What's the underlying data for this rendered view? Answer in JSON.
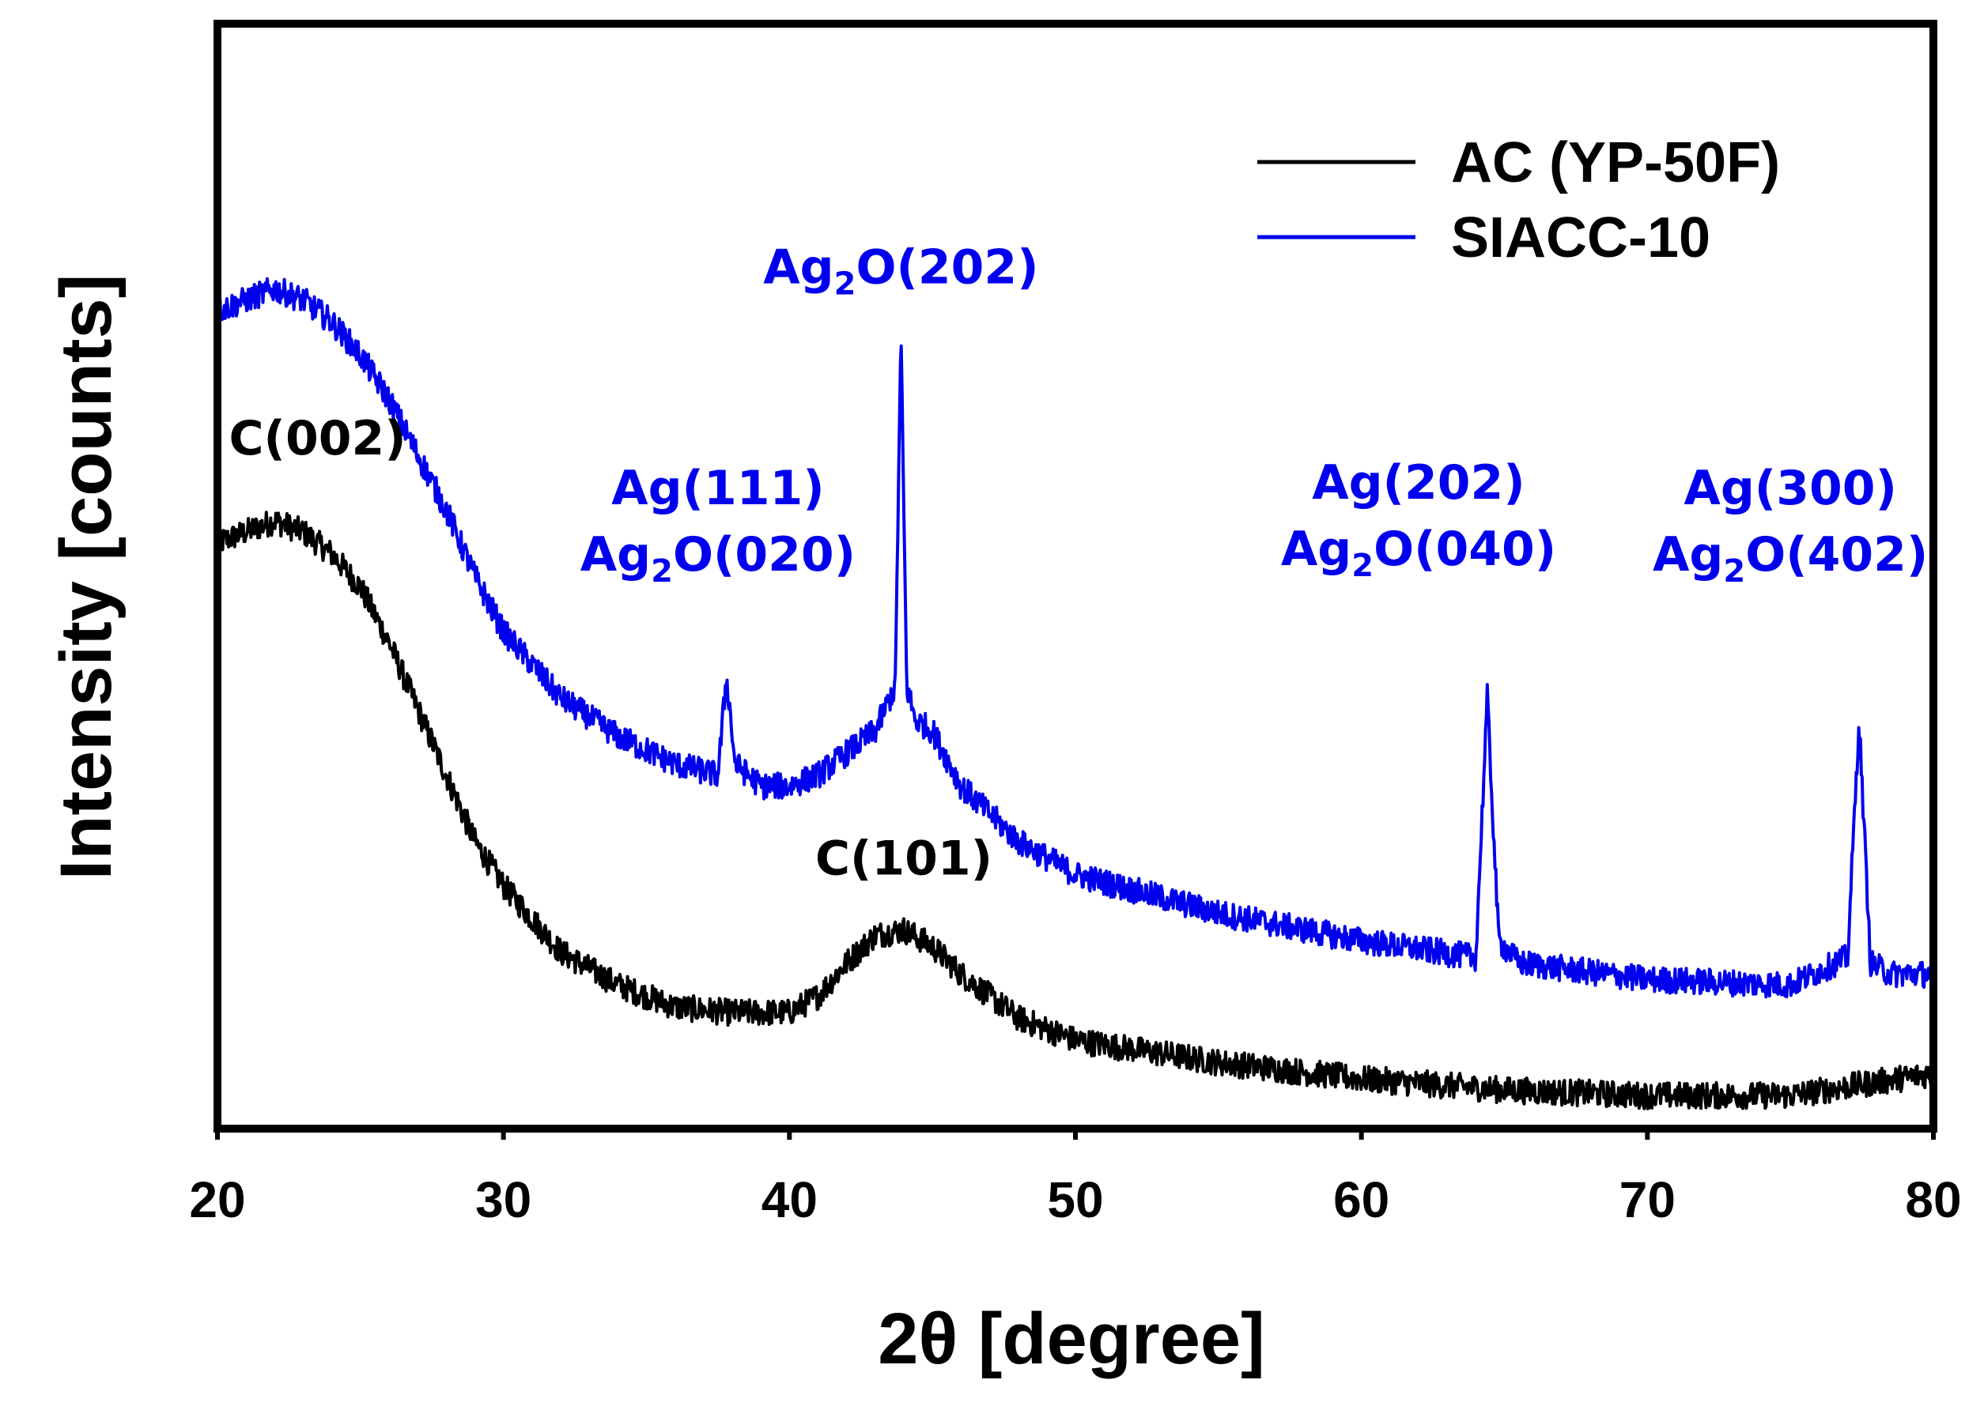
{
  "chart_data": {
    "type": "line",
    "title": "",
    "xlabel": "2θ [degree]",
    "ylabel": "Intensity [counts]",
    "xlim": [
      20,
      80
    ],
    "ylim": [
      0,
      100
    ],
    "xticks": [
      20,
      30,
      40,
      50,
      60,
      70,
      80
    ],
    "yticks_shown": false,
    "grid": false,
    "legend_position": "top-right",
    "colors": {
      "ac": "#000000",
      "siacc": "#0000ee",
      "frame": "#000000"
    },
    "series": [
      {
        "name": "AC (YP-50F)",
        "color": "#000000",
        "x": [
          20,
          21,
          22,
          23,
          24,
          25,
          26,
          27,
          28,
          29,
          30,
          32,
          34,
          36,
          38,
          40,
          41,
          42,
          43,
          44,
          45,
          46,
          48,
          50,
          55,
          60,
          65,
          70,
          75,
          80
        ],
        "y": [
          53,
          54,
          55,
          54,
          52,
          49,
          44,
          38,
          32,
          26,
          22,
          16,
          13,
          11,
          10.5,
          10.5,
          12,
          15,
          17.5,
          18,
          16.5,
          14,
          10,
          8,
          6,
          4.5,
          3.5,
          3,
          3,
          5
        ]
      },
      {
        "name": "SIACC-10",
        "color": "#0000ee",
        "x": [
          20,
          21,
          22,
          23,
          24,
          25,
          26,
          27,
          28,
          29,
          30,
          32,
          34,
          36,
          37.5,
          37.8,
          38.1,
          39,
          40,
          41,
          42,
          43,
          43.7,
          43.9,
          44.1,
          44.4,
          45,
          46,
          48,
          50,
          55,
          60,
          64,
          64.4,
          64.8,
          65.5,
          70,
          75,
          77,
          77.4,
          77.8,
          78.5,
          80
        ],
        "y": [
          74,
          75,
          76,
          75,
          73,
          70,
          66,
          61,
          56,
          50,
          45,
          39,
          35.5,
          33,
          32,
          41,
          33,
          31,
          31,
          32,
          34,
          36,
          40,
          72,
          40,
          37,
          36,
          31,
          26,
          23,
          19.5,
          17,
          15.5,
          39,
          17,
          15,
          13.5,
          13,
          15.5,
          37,
          15,
          14,
          14
        ]
      }
    ],
    "annotations": [
      {
        "base": "C(002)",
        "sub": "",
        "rest": "",
        "x": 23.5,
        "y": 61,
        "color": "#000000"
      },
      {
        "base": "C(101)",
        "sub": "",
        "rest": "",
        "x": 44,
        "y": 23,
        "color": "#000000"
      },
      {
        "base": "Ag(111)",
        "sub": "",
        "rest": "",
        "x": 37.5,
        "y": 56.5,
        "color": "#0000ee"
      },
      {
        "base": "Ag",
        "sub": "2",
        "rest": "O(020)",
        "x": 37.5,
        "y": 50.5,
        "color": "#0000ee"
      },
      {
        "base": "Ag",
        "sub": "2",
        "rest": "O(202)",
        "x": 43.9,
        "y": 76.5,
        "color": "#0000ee"
      },
      {
        "base": "Ag(202)",
        "sub": "",
        "rest": "",
        "x": 62,
        "y": 57,
        "color": "#0000ee"
      },
      {
        "base": "Ag",
        "sub": "2",
        "rest": "O(040)",
        "x": 62,
        "y": 51,
        "color": "#0000ee"
      },
      {
        "base": "Ag(300)",
        "sub": "",
        "rest": "",
        "x": 75,
        "y": 56.5,
        "color": "#0000ee"
      },
      {
        "base": "Ag",
        "sub": "2",
        "rest": "O(402)",
        "x": 75,
        "y": 50.5,
        "color": "#0000ee"
      }
    ],
    "legend": [
      {
        "label": "AC (YP-50F)",
        "color": "#000000"
      },
      {
        "label": "SIACC-10",
        "color": "#0000ee"
      }
    ]
  }
}
